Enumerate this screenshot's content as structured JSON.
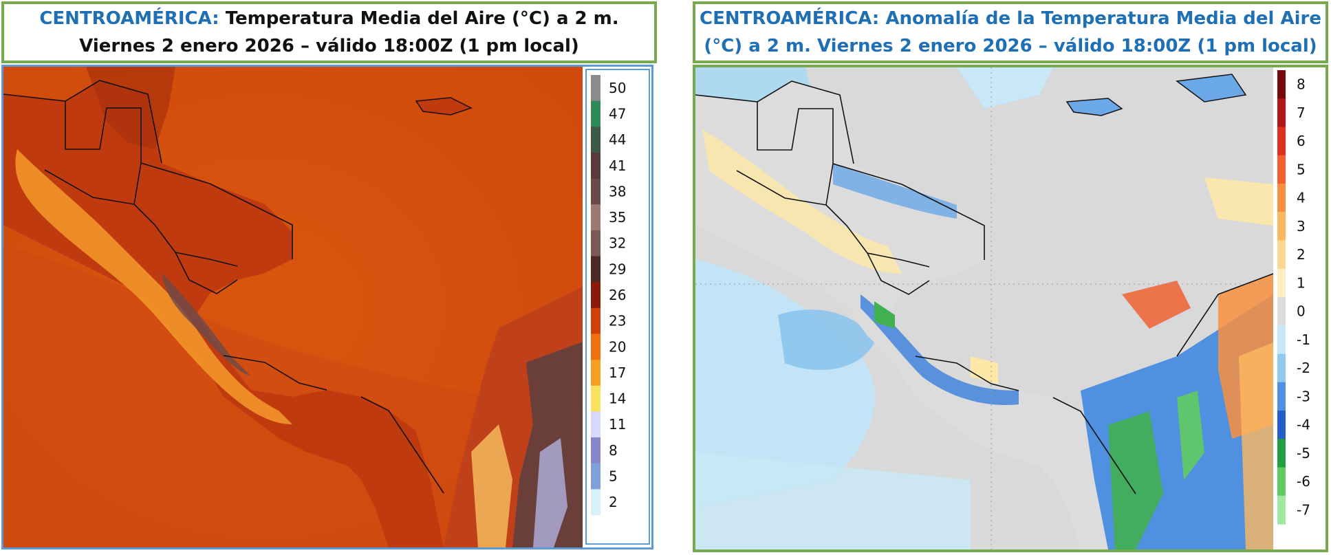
{
  "left_panel": {
    "title": {
      "region": "CENTROAMÉRICA:",
      "line1_rest": " Temperatura Media del Aire (°C) a 2 m.",
      "line2": "Viernes 2 enero 2026 – válido 18:00Z (1 pm local)"
    },
    "colorbar": {
      "labels": [
        "50",
        "47",
        "44",
        "41",
        "38",
        "35",
        "32",
        "29",
        "26",
        "23",
        "20",
        "17",
        "14",
        "11",
        "8",
        "5",
        "2"
      ],
      "colors": [
        "#8c8c8c",
        "#2e8b57",
        "#3c5a45",
        "#5a3a3a",
        "#6b4a4a",
        "#9b7a72",
        "#7a5a55",
        "#4a2a22",
        "#8b1a0a",
        "#d2400a",
        "#f07010",
        "#f5a020",
        "#f8e060",
        "#d8d8ff",
        "#8888c8",
        "#7fa0d8",
        "#d8f0f8"
      ]
    }
  },
  "right_panel": {
    "title": {
      "line1": "CENTROAMÉRICA: Anomalía de la Temperatura Media del Aire",
      "line2": "(°C) a 2 m. Viernes 2 enero 2026 – válido 18:00Z (1 pm local)"
    },
    "colorbar": {
      "labels": [
        "8",
        "7",
        "6",
        "5",
        "4",
        "3",
        "2",
        "1",
        "0",
        "-1",
        "-2",
        "-3",
        "-4",
        "-5",
        "-6",
        "-7"
      ],
      "colors": [
        "#7a0a0a",
        "#b01818",
        "#e03020",
        "#f06030",
        "#f89040",
        "#fbb860",
        "#fcd890",
        "#fdf0c0",
        "#dcdcdc",
        "#c8e8f8",
        "#90c8f0",
        "#5090e0",
        "#2060c8",
        "#20a040",
        "#60cc60",
        "#a0e8a0"
      ]
    }
  },
  "colors": {
    "title_border": "#77a94f",
    "left_map_border": "#5b9bd5",
    "region_text": "#1f6fb5"
  }
}
